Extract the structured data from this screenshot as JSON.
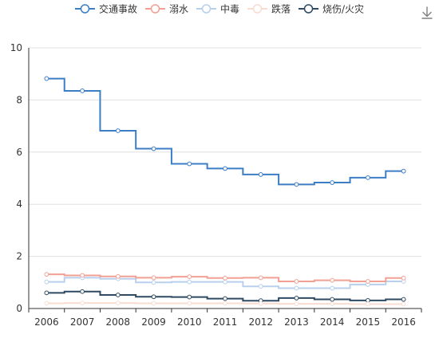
{
  "toolbar": {
    "download_icon": "download-icon",
    "download_color": "#808080"
  },
  "chart_data": {
    "type": "line",
    "step": true,
    "title": "",
    "xlabel": "",
    "ylabel": "",
    "categories": [
      "2006",
      "2007",
      "2008",
      "2009",
      "2010",
      "2011",
      "2012",
      "2013",
      "2014",
      "2015",
      "2016"
    ],
    "ylim": [
      0,
      10
    ],
    "yticks": [
      0,
      2,
      4,
      6,
      8,
      10
    ],
    "grid": true,
    "legend_position": "top",
    "series": [
      {
        "name": "交通事故",
        "color": "#3c7ec6",
        "values": [
          8.82,
          8.35,
          6.82,
          6.13,
          5.55,
          5.37,
          5.14,
          4.76,
          4.83,
          5.02,
          5.27
        ]
      },
      {
        "name": "溺水",
        "color": "#f2a094",
        "values": [
          1.31,
          1.27,
          1.23,
          1.18,
          1.22,
          1.17,
          1.18,
          1.04,
          1.08,
          1.04,
          1.17
        ]
      },
      {
        "name": "中毒",
        "color": "#b8d0ee",
        "values": [
          1.02,
          1.18,
          1.14,
          1.0,
          1.02,
          1.02,
          0.85,
          0.78,
          0.78,
          0.92,
          1.04
        ]
      },
      {
        "name": "跌落",
        "color": "#f9dcd0",
        "values": [
          0.2,
          0.21,
          0.21,
          0.2,
          0.2,
          0.2,
          0.19,
          0.18,
          0.18,
          0.17,
          0.17
        ]
      },
      {
        "name": "烧伤/火灾",
        "color": "#2e4a62",
        "values": [
          0.6,
          0.65,
          0.52,
          0.45,
          0.44,
          0.38,
          0.3,
          0.4,
          0.35,
          0.31,
          0.35
        ]
      }
    ]
  }
}
